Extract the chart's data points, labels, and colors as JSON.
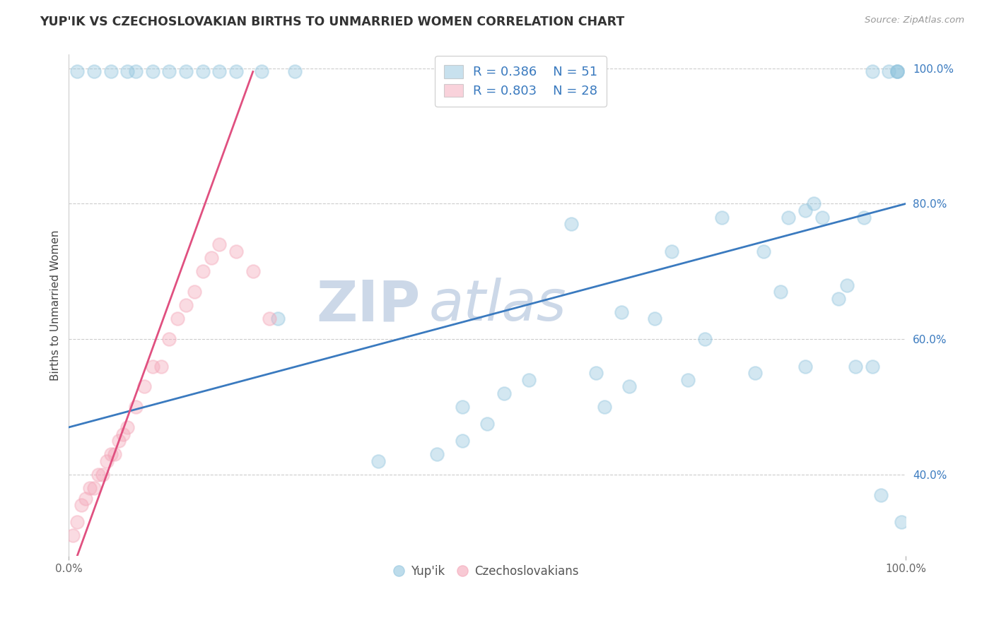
{
  "title": "YUP'IK VS CZECHOSLOVAKIAN BIRTHS TO UNMARRIED WOMEN CORRELATION CHART",
  "source_text": "Source: ZipAtlas.com",
  "ylabel": "Births to Unmarried Women",
  "xlim": [
    0.0,
    1.0
  ],
  "ylim": [
    0.28,
    1.02
  ],
  "legend_r1": "R = 0.386",
  "legend_n1": "N = 51",
  "legend_r2": "R = 0.803",
  "legend_n2": "N = 28",
  "blue_color": "#92c5de",
  "pink_color": "#f4a6b8",
  "line_blue": "#3a7abf",
  "line_pink": "#e05080",
  "watermark_top": "ZIP",
  "watermark_bot": "atlas",
  "watermark_color": "#ccd8e8",
  "blue_scatter_x": [
    0.01,
    0.03,
    0.05,
    0.07,
    0.08,
    0.1,
    0.12,
    0.14,
    0.16,
    0.18,
    0.2,
    0.23,
    0.25,
    0.27,
    0.37,
    0.44,
    0.47,
    0.47,
    0.5,
    0.52,
    0.55,
    0.6,
    0.63,
    0.64,
    0.66,
    0.67,
    0.7,
    0.72,
    0.74,
    0.76,
    0.78,
    0.82,
    0.83,
    0.85,
    0.86,
    0.88,
    0.88,
    0.89,
    0.9,
    0.92,
    0.93,
    0.94,
    0.95,
    0.96,
    0.97,
    0.98,
    0.99,
    0.995,
    0.96,
    0.99,
    0.99
  ],
  "blue_scatter_y": [
    0.995,
    0.995,
    0.995,
    0.995,
    0.995,
    0.995,
    0.995,
    0.995,
    0.995,
    0.995,
    0.995,
    0.995,
    0.63,
    0.995,
    0.42,
    0.43,
    0.45,
    0.5,
    0.475,
    0.52,
    0.54,
    0.77,
    0.55,
    0.5,
    0.64,
    0.53,
    0.63,
    0.73,
    0.54,
    0.6,
    0.78,
    0.55,
    0.73,
    0.67,
    0.78,
    0.79,
    0.56,
    0.8,
    0.78,
    0.66,
    0.68,
    0.56,
    0.78,
    0.56,
    0.37,
    0.995,
    0.995,
    0.33,
    0.995,
    0.995,
    0.995
  ],
  "pink_scatter_x": [
    0.005,
    0.01,
    0.015,
    0.02,
    0.025,
    0.03,
    0.035,
    0.04,
    0.045,
    0.05,
    0.055,
    0.06,
    0.065,
    0.07,
    0.08,
    0.09,
    0.1,
    0.11,
    0.12,
    0.13,
    0.14,
    0.15,
    0.16,
    0.17,
    0.18,
    0.2,
    0.22,
    0.24
  ],
  "pink_scatter_y": [
    0.31,
    0.33,
    0.355,
    0.365,
    0.38,
    0.38,
    0.4,
    0.4,
    0.42,
    0.43,
    0.43,
    0.45,
    0.46,
    0.47,
    0.5,
    0.53,
    0.56,
    0.56,
    0.6,
    0.63,
    0.65,
    0.67,
    0.7,
    0.72,
    0.74,
    0.73,
    0.7,
    0.63
  ],
  "blue_line_x": [
    0.0,
    1.0
  ],
  "blue_line_y": [
    0.47,
    0.8
  ],
  "pink_line_x": [
    0.01,
    0.22
  ],
  "pink_line_y": [
    0.28,
    0.995
  ],
  "yticks": [
    0.4,
    0.6,
    0.8,
    1.0
  ],
  "ytick_labels": [
    "40.0%",
    "60.0%",
    "80.0%",
    "100.0%"
  ],
  "grid_color": "#cccccc",
  "background_color": "#ffffff"
}
